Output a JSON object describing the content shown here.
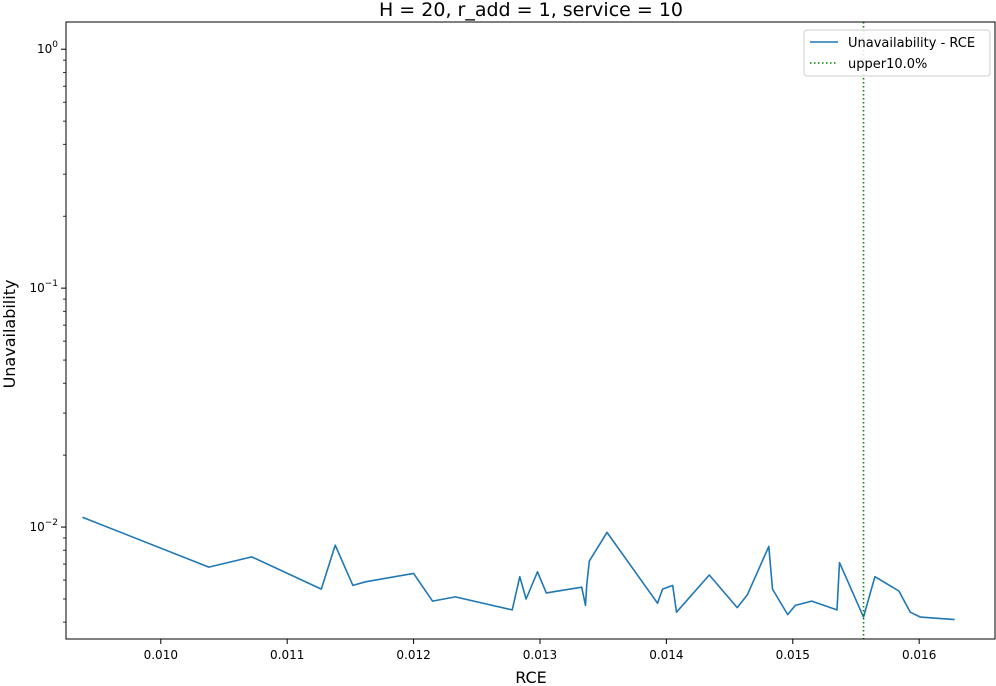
{
  "chart_data": {
    "type": "line",
    "title": "H = 20, r_add = 1, service = 10",
    "xlabel": "RCE",
    "ylabel": "Unavailability",
    "xlim": [
      0.00925,
      0.0166
    ],
    "ylim": [
      0.0034,
      1.3
    ],
    "yscale": "log",
    "x_ticks": [
      0.01,
      0.011,
      0.012,
      0.013,
      0.014,
      0.015,
      0.016
    ],
    "x_tick_labels": [
      "0.010",
      "0.011",
      "0.012",
      "0.013",
      "0.014",
      "0.015",
      "0.016"
    ],
    "y_ticks": [
      {
        "value": 1,
        "base": "10",
        "exp": "0"
      },
      {
        "value": 0.1,
        "base": "10",
        "exp": "−1"
      },
      {
        "value": 0.01,
        "base": "10",
        "exp": "−2"
      }
    ],
    "grid": false,
    "legend_position": "top-right",
    "series": [
      {
        "name": "Unavailability - RCE",
        "color": "#1f77b4",
        "x": [
          0.00938,
          0.01038,
          0.01072,
          0.01127,
          0.01138,
          0.01152,
          0.01162,
          0.012,
          0.01215,
          0.01233,
          0.01278,
          0.01284,
          0.01289,
          0.01298,
          0.01305,
          0.01333,
          0.01336,
          0.01337,
          0.01339,
          0.01353,
          0.01393,
          0.01397,
          0.01405,
          0.01408,
          0.01434,
          0.01456,
          0.01464,
          0.01481,
          0.01484,
          0.01496,
          0.01502,
          0.01515,
          0.01535,
          0.01537,
          0.01556,
          0.01565,
          0.01584,
          0.01593,
          0.01601,
          0.01628
        ],
        "y": [
          0.011,
          0.0068,
          0.0075,
          0.0055,
          0.0084,
          0.0057,
          0.0059,
          0.0064,
          0.0049,
          0.0051,
          0.0045,
          0.0062,
          0.005,
          0.0065,
          0.0053,
          0.0056,
          0.0047,
          0.0057,
          0.0072,
          0.0095,
          0.0048,
          0.0055,
          0.0057,
          0.0044,
          0.0063,
          0.0046,
          0.0052,
          0.0083,
          0.0055,
          0.0043,
          0.0047,
          0.0049,
          0.0045,
          0.0071,
          0.0042,
          0.0062,
          0.0054,
          0.0044,
          0.0042,
          0.0041
        ]
      }
    ],
    "vline": {
      "name": "upper10.0%",
      "x": 0.01556,
      "color": "#008000",
      "style": "dotted"
    }
  }
}
